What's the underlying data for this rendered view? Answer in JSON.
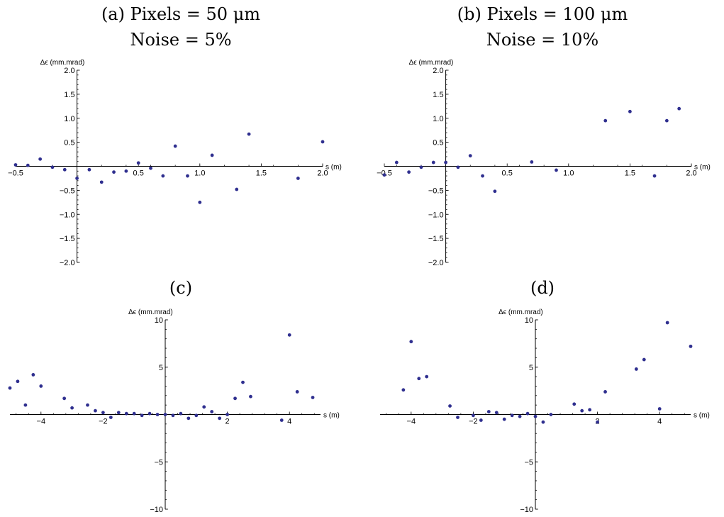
{
  "chart_data": [
    {
      "type": "scatter",
      "title_line1": "(a) Pixels = 50 μm",
      "title_line2": "Noise = 5%",
      "xlabel": "s (m)",
      "ylabel": "Δϵ (mm.mrad)",
      "xlim": [
        -0.5,
        2.0
      ],
      "ylim": [
        -2.0,
        2.0
      ],
      "xticks": [
        -0.5,
        0.5,
        1.0,
        1.5,
        2.0
      ],
      "xtick_labels": [
        "−0.5",
        "0.5",
        "1.0",
        "1.5",
        "2.0"
      ],
      "yticks": [
        -2.0,
        -1.5,
        -1.0,
        -0.5,
        0.5,
        1.0,
        1.5,
        2.0
      ],
      "ytick_labels": [
        "−2.0",
        "−1.5",
        "−1.0",
        "−0.5",
        "0.5",
        "1.0",
        "1.5",
        "2.0"
      ],
      "color": "#2f2f8f",
      "points": [
        [
          -0.5,
          0.03
        ],
        [
          -0.4,
          0.02
        ],
        [
          -0.3,
          0.15
        ],
        [
          -0.2,
          -0.02
        ],
        [
          -0.1,
          -0.07
        ],
        [
          0.0,
          -0.25
        ],
        [
          0.1,
          -0.07
        ],
        [
          0.2,
          -0.33
        ],
        [
          0.3,
          -0.12
        ],
        [
          0.4,
          -0.1
        ],
        [
          0.5,
          0.07
        ],
        [
          0.6,
          -0.04
        ],
        [
          0.7,
          -0.2
        ],
        [
          0.8,
          0.42
        ],
        [
          0.9,
          -0.2
        ],
        [
          1.0,
          -0.75
        ],
        [
          1.1,
          0.23
        ],
        [
          1.3,
          -0.48
        ],
        [
          1.4,
          0.67
        ],
        [
          1.8,
          -0.25
        ],
        [
          2.0,
          0.51
        ]
      ]
    },
    {
      "type": "scatter",
      "title_line1": "(b) Pixels = 100 μm",
      "title_line2": "Noise = 10%",
      "xlabel": "s (m)",
      "ylabel": "Δϵ (mm.mrad)",
      "xlim": [
        -0.5,
        2.0
      ],
      "ylim": [
        -2.0,
        2.0
      ],
      "xticks": [
        -0.5,
        0.5,
        1.0,
        1.5,
        2.0
      ],
      "xtick_labels": [
        "−0.5",
        "0.5",
        "1.0",
        "1.5",
        "2.0"
      ],
      "yticks": [
        -2.0,
        -1.5,
        -1.0,
        -0.5,
        0.5,
        1.0,
        1.5,
        2.0
      ],
      "ytick_labels": [
        "−2.0",
        "−1.5",
        "−1.0",
        "−0.5",
        "0.5",
        "1.0",
        "1.5",
        "2.0"
      ],
      "color": "#2f2f8f",
      "points": [
        [
          -0.5,
          -0.18
        ],
        [
          -0.4,
          0.08
        ],
        [
          -0.3,
          -0.12
        ],
        [
          -0.2,
          -0.02
        ],
        [
          -0.1,
          0.08
        ],
        [
          0.0,
          0.08
        ],
        [
          0.1,
          -0.02
        ],
        [
          0.2,
          0.22
        ],
        [
          0.3,
          -0.2
        ],
        [
          0.4,
          -0.52
        ],
        [
          0.7,
          0.09
        ],
        [
          0.9,
          -0.08
        ],
        [
          1.3,
          0.95
        ],
        [
          1.5,
          1.14
        ],
        [
          1.7,
          -0.2
        ],
        [
          1.8,
          0.95
        ],
        [
          1.9,
          1.2
        ]
      ]
    },
    {
      "type": "scatter",
      "title_line1": "(c)",
      "title_line2": "",
      "xlabel": "s (m)",
      "ylabel": "Δϵ (mm.mrad)",
      "xlim": [
        -5,
        5
      ],
      "ylim": [
        -10,
        10
      ],
      "xticks": [
        -4,
        -2,
        2,
        4
      ],
      "xtick_labels": [
        "−4",
        "−2",
        "2",
        "4"
      ],
      "yticks": [
        -10,
        -5,
        5,
        10
      ],
      "ytick_labels": [
        "−10",
        "−5",
        "5",
        "10"
      ],
      "color": "#2f2f8f",
      "points": [
        [
          -5.0,
          2.8
        ],
        [
          -4.75,
          3.5
        ],
        [
          -4.5,
          1.0
        ],
        [
          -4.25,
          4.2
        ],
        [
          -4.0,
          3.0
        ],
        [
          -3.25,
          1.7
        ],
        [
          -3.0,
          0.7
        ],
        [
          -2.5,
          1.0
        ],
        [
          -2.25,
          0.4
        ],
        [
          -2.0,
          0.2
        ],
        [
          -1.75,
          -0.3
        ],
        [
          -1.5,
          0.2
        ],
        [
          -1.25,
          0.1
        ],
        [
          -1.0,
          0.1
        ],
        [
          -0.75,
          -0.1
        ],
        [
          -0.5,
          0.1
        ],
        [
          -0.25,
          0.0
        ],
        [
          0.0,
          0.0
        ],
        [
          0.25,
          -0.1
        ],
        [
          0.5,
          0.1
        ],
        [
          0.75,
          -0.4
        ],
        [
          1.0,
          -0.1
        ],
        [
          1.25,
          0.8
        ],
        [
          1.5,
          0.3
        ],
        [
          1.75,
          -0.4
        ],
        [
          2.0,
          0.0
        ],
        [
          2.25,
          1.7
        ],
        [
          2.5,
          3.4
        ],
        [
          2.75,
          1.9
        ],
        [
          3.75,
          -0.6
        ],
        [
          4.0,
          8.4
        ],
        [
          4.25,
          2.4
        ],
        [
          4.75,
          1.8
        ]
      ]
    },
    {
      "type": "scatter",
      "title_line1": "(d)",
      "title_line2": "",
      "xlabel": "s (m)",
      "ylabel": "Δϵ (mm.mrad)",
      "xlim": [
        -5,
        5
      ],
      "ylim": [
        -10,
        10
      ],
      "xticks": [
        -4,
        -2,
        2,
        4
      ],
      "xtick_labels": [
        "−4",
        "−2",
        "2",
        "4"
      ],
      "yticks": [
        -10,
        -5,
        5,
        10
      ],
      "ytick_labels": [
        "−10",
        "−5",
        "5",
        "10"
      ],
      "color": "#2f2f8f",
      "points": [
        [
          -4.25,
          2.6
        ],
        [
          -4.0,
          7.7
        ],
        [
          -3.75,
          3.8
        ],
        [
          -3.5,
          4.0
        ],
        [
          -2.75,
          0.9
        ],
        [
          -2.5,
          -0.3
        ],
        [
          -2.0,
          -0.1
        ],
        [
          -1.75,
          -0.6
        ],
        [
          -1.5,
          0.3
        ],
        [
          -1.25,
          0.2
        ],
        [
          -1.0,
          -0.5
        ],
        [
          -0.75,
          -0.1
        ],
        [
          -0.5,
          -0.2
        ],
        [
          -0.25,
          0.1
        ],
        [
          0.0,
          -0.2
        ],
        [
          0.25,
          -0.8
        ],
        [
          0.5,
          -0.0
        ],
        [
          1.25,
          1.1
        ],
        [
          1.5,
          0.4
        ],
        [
          1.75,
          0.5
        ],
        [
          2.0,
          -0.8
        ],
        [
          2.25,
          2.4
        ],
        [
          3.25,
          4.8
        ],
        [
          3.5,
          5.8
        ],
        [
          4.0,
          0.6
        ],
        [
          4.25,
          9.7
        ],
        [
          5.0,
          7.2
        ]
      ]
    }
  ]
}
